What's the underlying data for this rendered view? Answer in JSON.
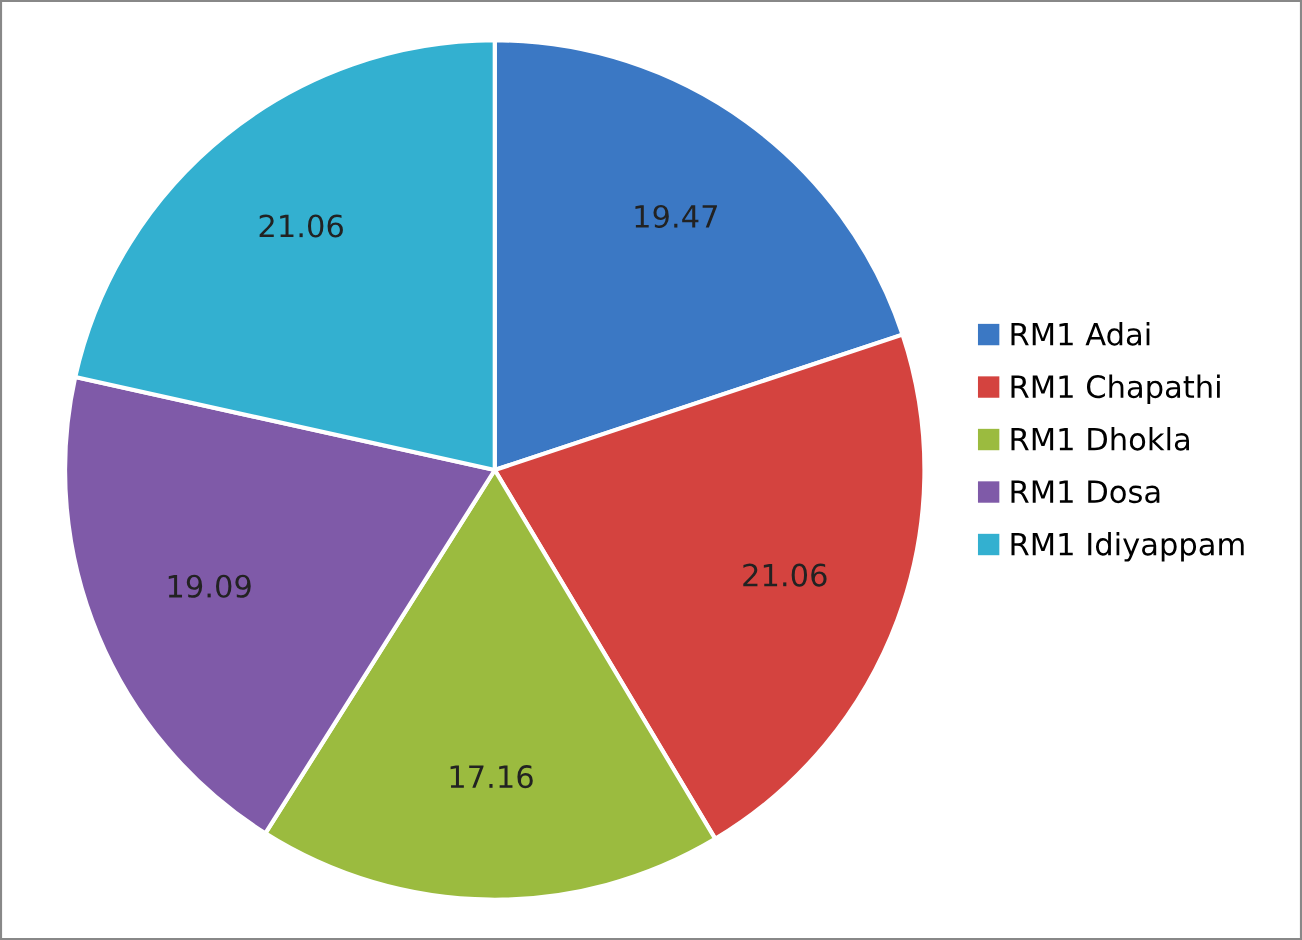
{
  "chart_data": {
    "type": "pie",
    "categories": [
      "RM1 Adai",
      "RM1 Chapathi",
      "RM1 Dhokla",
      "RM1 Dosa",
      "RM1 Idiyappam"
    ],
    "values": [
      19.47,
      21.06,
      17.16,
      19.09,
      21.06
    ],
    "colors": [
      "#3b78c4",
      "#d4433f",
      "#9bbb3f",
      "#7f5aa8",
      "#33b0d0"
    ],
    "data_labels": true,
    "legend": "right"
  }
}
